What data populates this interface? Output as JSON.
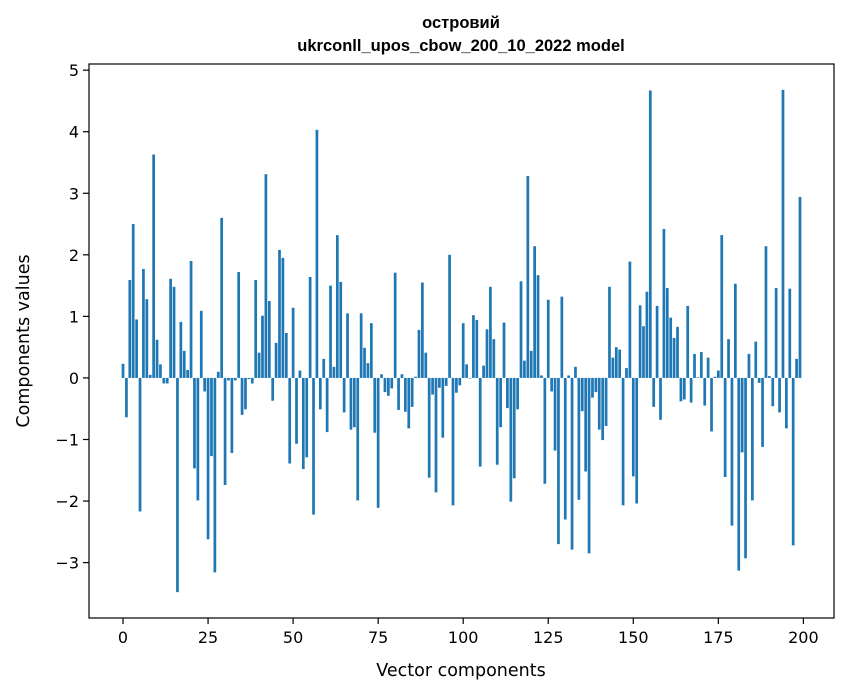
{
  "chart_data": {
    "type": "bar",
    "title_line1": "островий",
    "title_line2": "ukrconll_upos_cbow_200_10_2022 model",
    "xlabel": "Vector components",
    "ylabel": "Components values",
    "xlim": [
      -10,
      209
    ],
    "ylim": [
      -3.9,
      5.1
    ],
    "xticks": [
      0,
      25,
      50,
      75,
      100,
      125,
      150,
      175,
      200
    ],
    "xtick_labels": [
      "0",
      "25",
      "50",
      "75",
      "100",
      "125",
      "150",
      "175",
      "200"
    ],
    "yticks": [
      -3,
      -2,
      -1,
      0,
      1,
      2,
      3,
      4,
      5
    ],
    "ytick_labels": [
      "−3",
      "−2",
      "−1",
      "0",
      "1",
      "2",
      "3",
      "4",
      "5"
    ],
    "grid": false,
    "bar_color": "#1f77b4",
    "x_start": 0,
    "values": [
      0.23,
      -0.64,
      1.59,
      2.5,
      0.95,
      -2.17,
      1.77,
      1.28,
      0.05,
      3.63,
      0.62,
      0.22,
      -0.09,
      -0.09,
      1.61,
      1.48,
      -3.48,
      0.91,
      0.44,
      0.13,
      1.9,
      -1.47,
      -1.99,
      1.09,
      -0.22,
      -2.62,
      -1.27,
      -3.16,
      0.1,
      2.6,
      -1.74,
      -0.04,
      -1.22,
      -0.04,
      1.72,
      -0.6,
      -0.51,
      -0.02,
      -0.09,
      1.59,
      0.41,
      1.01,
      3.31,
      1.25,
      -0.37,
      0.57,
      2.08,
      1.95,
      0.73,
      -1.39,
      1.14,
      -1.07,
      0.12,
      -1.48,
      -1.29,
      1.64,
      -2.22,
      4.03,
      -0.51,
      0.31,
      -0.88,
      1.5,
      0.18,
      2.32,
      1.56,
      -0.56,
      1.05,
      -0.84,
      -0.8,
      -1.99,
      1.05,
      0.49,
      0.24,
      0.89,
      -0.89,
      -2.11,
      0.06,
      -0.23,
      -0.29,
      -0.17,
      1.71,
      -0.52,
      0.06,
      -0.55,
      -0.82,
      -0.47,
      0.02,
      0.78,
      1.55,
      0.41,
      -1.62,
      -0.27,
      -1.86,
      -0.16,
      -0.97,
      -0.13,
      2.0,
      -2.07,
      -0.24,
      -0.12,
      0.89,
      0.22,
      -0.01,
      1.02,
      0.94,
      -1.44,
      0.2,
      0.79,
      1.48,
      0.63,
      -1.41,
      -0.8,
      0.9,
      -0.49,
      -2.01,
      -1.63,
      -0.51,
      1.57,
      0.28,
      3.28,
      0.44,
      2.14,
      1.67,
      0.04,
      -1.72,
      1.27,
      -0.22,
      -1.18,
      -2.7,
      1.32,
      -2.3,
      0.04,
      -2.79,
      0.18,
      -1.98,
      -0.54,
      -1.52,
      -2.85,
      -0.32,
      -0.23,
      -0.84,
      -1.01,
      -0.78,
      1.48,
      0.33,
      0.5,
      0.46,
      -2.07,
      0.16,
      1.89,
      -1.6,
      -2.04,
      1.18,
      0.84,
      1.4,
      4.67,
      -0.47,
      1.17,
      -0.68,
      2.42,
      1.46,
      0.98,
      0.65,
      0.83,
      -0.38,
      -0.35,
      1.17,
      -0.4,
      0.39,
      0.01,
      0.42,
      -0.45,
      0.33,
      -0.87,
      0.02,
      0.12,
      2.32,
      -1.61,
      0.63,
      -2.4,
      1.53,
      -3.13,
      -1.21,
      -2.93,
      0.39,
      -1.99,
      0.59,
      -0.08,
      -1.12,
      2.14,
      0.03,
      -0.46,
      1.46,
      -0.56,
      4.68,
      -0.82,
      1.45,
      -2.72,
      0.31,
      2.94
    ]
  }
}
